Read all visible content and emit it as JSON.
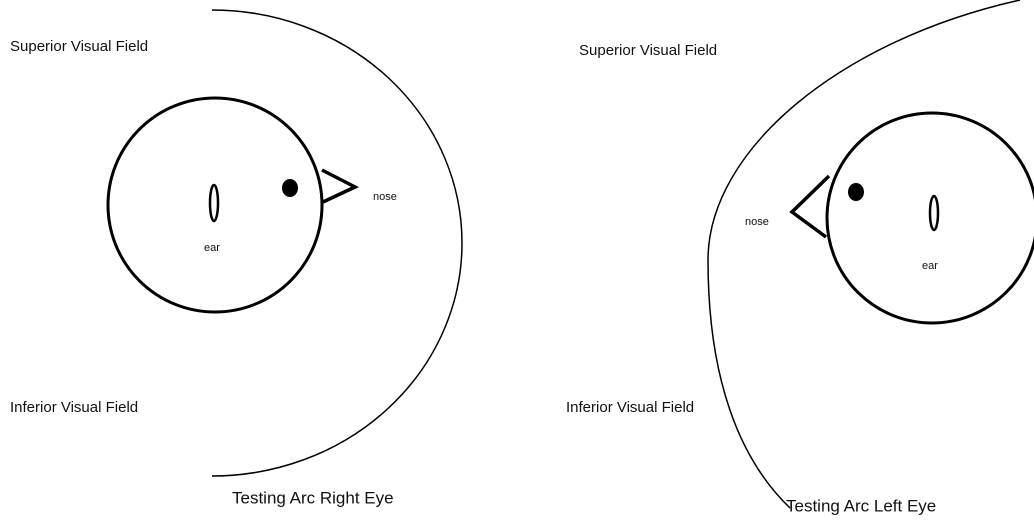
{
  "panels": [
    {
      "superior": "Superior Visual Field",
      "inferior": "Inferior Visual Field",
      "nose": "nose",
      "ear": "ear",
      "caption": "Testing Arc Right Eye"
    },
    {
      "superior": "Superior Visual Field",
      "inferior": "Inferior Visual Field",
      "nose": "nose",
      "ear": "ear",
      "caption": "Testing Arc Left Eye"
    }
  ]
}
